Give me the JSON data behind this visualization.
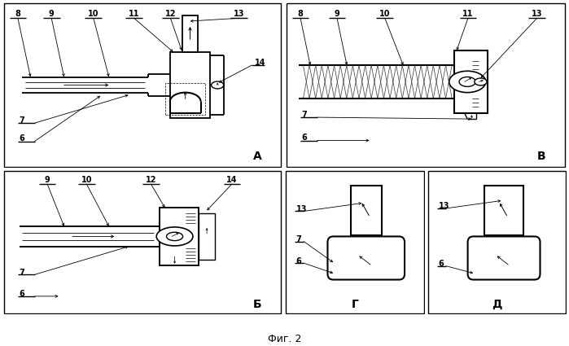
{
  "title": "Фиг. 2",
  "bg_color": "#ffffff",
  "lc": "#000000",
  "panels": [
    "А",
    "Б",
    "В",
    "Г",
    "Д"
  ],
  "fs_num": 7,
  "fs_panel": 10
}
